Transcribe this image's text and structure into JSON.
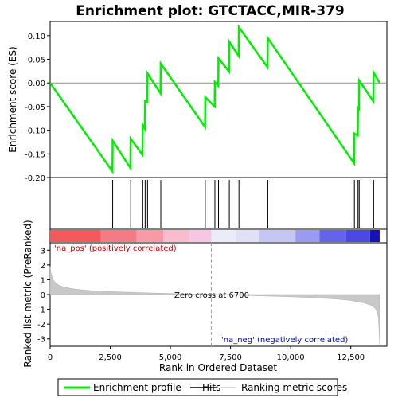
{
  "chart_data": {
    "type": "line",
    "title": "Enrichment plot: GTCTACC,MIR-379",
    "xlabel": "Rank in Ordered Dataset",
    "ylabel_top": "Enrichment score (ES)",
    "ylabel_bottom": "Ranked list metric (PreRanked)",
    "x_range": [
      0,
      14000
    ],
    "x_ticks": [
      0,
      2500,
      5000,
      7500,
      10000,
      12500
    ],
    "x_tick_labels": [
      "0",
      "2,500",
      "5,000",
      "7,500",
      "10,000",
      "12,500"
    ],
    "es_ylim": [
      -0.2,
      0.13
    ],
    "es_ticks": [
      -0.2,
      -0.15,
      -0.1,
      -0.05,
      0.0,
      0.05,
      0.1
    ],
    "es_tick_labels": [
      "-0.20",
      "-0.15",
      "-0.10",
      "-0.05",
      "0.00",
      "0.05",
      "0.10"
    ],
    "metric_ylim": [
      -3.5,
      3.5
    ],
    "metric_ticks": [
      -3,
      -2,
      -1,
      0,
      1,
      2,
      3
    ],
    "metric_tick_labels": [
      "-3",
      "-2",
      "-1",
      "0",
      "1",
      "2",
      "3"
    ],
    "n_genes": 13700,
    "hits": [
      2600,
      3350,
      3850,
      3950,
      4050,
      4600,
      6450,
      6850,
      7000,
      7450,
      7850,
      9050,
      12650,
      12800,
      12850,
      13450
    ],
    "es_profile": {
      "x": [
        0,
        2590,
        2600,
        3340,
        3350,
        3840,
        3850,
        3940,
        3950,
        4040,
        4050,
        4590,
        4600,
        6440,
        6450,
        6840,
        6850,
        6990,
        7000,
        7440,
        7450,
        7840,
        7850,
        9040,
        9050,
        12640,
        12650,
        12790,
        12800,
        12840,
        12850,
        13440,
        13450,
        13700
      ],
      "y": [
        0.0,
        -0.187,
        -0.122,
        -0.18,
        -0.118,
        -0.152,
        -0.089,
        -0.097,
        -0.038,
        -0.04,
        0.02,
        -0.022,
        0.041,
        -0.093,
        -0.03,
        -0.05,
        0.002,
        -0.006,
        0.052,
        0.024,
        0.087,
        0.057,
        0.118,
        0.033,
        0.095,
        -0.17,
        -0.107,
        -0.111,
        -0.053,
        -0.055,
        0.005,
        -0.039,
        0.022,
        0.0
      ]
    },
    "metric_profile": {
      "x": [
        0,
        30,
        80,
        150,
        250,
        400,
        600,
        900,
        1300,
        1800,
        2500,
        3500,
        5000,
        6700,
        8500,
        10000,
        11000,
        12000,
        12500,
        13000,
        13300,
        13500,
        13600,
        13650,
        13680,
        13700
      ],
      "y": [
        1.9,
        1.5,
        1.2,
        0.95,
        0.75,
        0.6,
        0.5,
        0.4,
        0.32,
        0.25,
        0.2,
        0.14,
        0.07,
        0.0,
        -0.08,
        -0.15,
        -0.22,
        -0.32,
        -0.4,
        -0.55,
        -0.7,
        -0.9,
        -1.2,
        -1.6,
        -2.5,
        -3.4
      ]
    },
    "zero_cross": 6700,
    "zero_cross_label": "Zero cross at 6700",
    "pos_label": "'na_pos' (positively correlated)",
    "neg_label": "'na_neg' (negatively correlated)",
    "legend": [
      "Enrichment profile",
      "Hits",
      "Ranking metric scores"
    ],
    "colors": {
      "profile": "#00ee00",
      "hits": "#000000",
      "metric_fill": "#c8c8c8",
      "pos_text": "#cc0000",
      "neg_text": "#0000cc",
      "zero_line": "#a0a0a0",
      "baseline": "#909090"
    },
    "heatmap_segments": [
      {
        "from": 0,
        "to": 2100,
        "color": "#f05a5a"
      },
      {
        "from": 2100,
        "to": 3600,
        "color": "#f47a84"
      },
      {
        "from": 3600,
        "to": 4700,
        "color": "#f79aa6"
      },
      {
        "from": 4700,
        "to": 5800,
        "color": "#fbbcd0"
      },
      {
        "from": 5800,
        "to": 6700,
        "color": "#f8c6e4"
      },
      {
        "from": 6700,
        "to": 7700,
        "color": "#ececf8"
      },
      {
        "from": 7700,
        "to": 8700,
        "color": "#e0e0f6"
      },
      {
        "from": 8700,
        "to": 10200,
        "color": "#c6c6f4"
      },
      {
        "from": 10200,
        "to": 11200,
        "color": "#9a9af0"
      },
      {
        "from": 11200,
        "to": 12300,
        "color": "#6464e8"
      },
      {
        "from": 12300,
        "to": 13300,
        "color": "#4a4ae0"
      },
      {
        "from": 13300,
        "to": 13700,
        "color": "#1414b4"
      }
    ]
  }
}
